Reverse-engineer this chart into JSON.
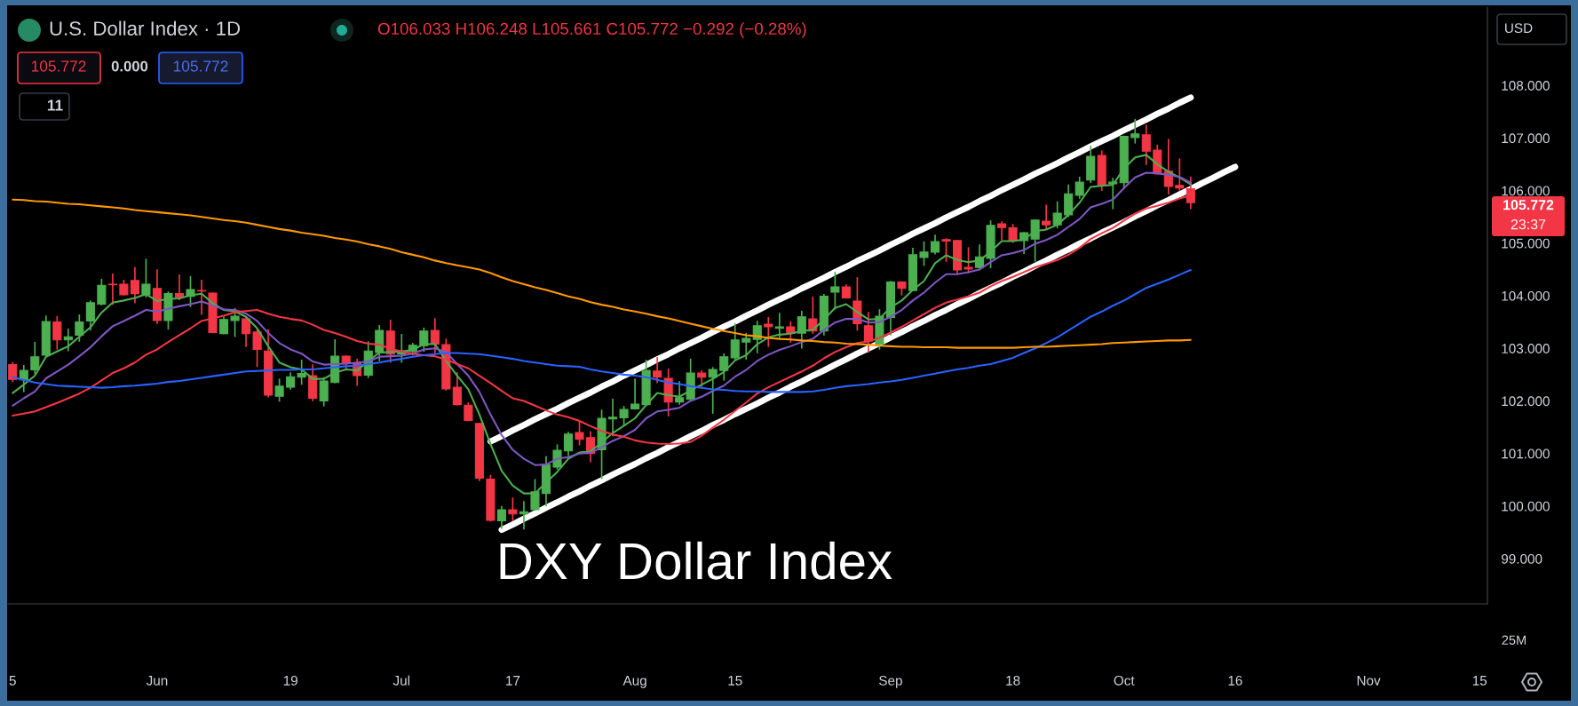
{
  "chart_data": {
    "type": "candlestick",
    "title": "U.S. Dollar Index · 1D",
    "subtitle": "O106.033 H106.248 L105.661 C105.772 −0.292 (−0.28%)",
    "categories": [
      "5",
      null,
      null,
      null,
      null,
      null,
      null,
      null,
      null,
      null,
      null,
      null,
      null,
      "Jun",
      null,
      null,
      null,
      null,
      null,
      null,
      null,
      null,
      null,
      null,
      null,
      "19",
      null,
      null,
      null,
      null,
      null,
      null,
      null,
      null,
      null,
      "Jul",
      null,
      null,
      null,
      null,
      null,
      null,
      null,
      null,
      null,
      "17",
      null,
      null,
      null,
      null,
      null,
      null,
      null,
      null,
      null,
      null,
      "Aug",
      null,
      null,
      null,
      null,
      null,
      null,
      null,
      null,
      "15",
      null,
      null,
      null,
      null,
      null,
      null,
      null,
      null,
      null,
      null,
      null,
      null,
      null,
      "Sep",
      null,
      null,
      null,
      null,
      null,
      null,
      null,
      null,
      null,
      null,
      "18",
      null,
      null,
      null,
      null,
      null,
      null,
      null,
      null,
      null,
      "Oct",
      null,
      null,
      null,
      null,
      null,
      null,
      null,
      null,
      null,
      "16",
      null,
      null,
      null,
      null,
      null,
      null,
      null,
      null,
      null,
      null,
      null,
      "Nov",
      null,
      null,
      null,
      null,
      null,
      null,
      null,
      null,
      null,
      "15"
    ],
    "ohlc": [
      [
        102.69,
        102.73,
        102.37,
        102.41
      ],
      [
        102.4,
        102.67,
        102.18,
        102.58
      ],
      [
        102.59,
        103.11,
        102.53,
        102.84
      ],
      [
        102.87,
        103.61,
        102.86,
        103.51
      ],
      [
        103.5,
        103.6,
        102.99,
        103.16
      ],
      [
        103.16,
        103.36,
        102.96,
        103.22
      ],
      [
        103.25,
        103.63,
        103.14,
        103.5
      ],
      [
        103.52,
        103.9,
        103.35,
        103.87
      ],
      [
        103.84,
        104.31,
        103.83,
        104.2
      ],
      [
        104.22,
        104.41,
        103.84,
        104.21
      ],
      [
        104.22,
        104.29,
        104.02,
        104.02
      ],
      [
        104.29,
        104.53,
        103.87,
        104.04
      ],
      [
        104.02,
        104.69,
        103.98,
        104.22
      ],
      [
        104.14,
        104.49,
        103.48,
        103.53
      ],
      [
        103.53,
        104.07,
        103.37,
        104.04
      ],
      [
        104.04,
        104.39,
        103.93,
        103.97
      ],
      [
        103.99,
        104.36,
        103.8,
        104.12
      ],
      [
        104.1,
        104.29,
        103.65,
        104.09
      ],
      [
        104.05,
        104.05,
        103.3,
        103.3
      ],
      [
        103.28,
        103.59,
        103.28,
        103.55
      ],
      [
        103.53,
        103.75,
        103.23,
        103.61
      ],
      [
        103.56,
        103.6,
        103.04,
        103.28
      ],
      [
        103.31,
        103.38,
        102.66,
        102.98
      ],
      [
        102.95,
        103.35,
        102.08,
        102.11
      ],
      [
        102.09,
        102.41,
        102.0,
        102.28
      ],
      [
        102.26,
        102.53,
        102.23,
        102.46
      ],
      [
        102.45,
        102.77,
        102.32,
        102.52
      ],
      [
        102.48,
        102.68,
        102.01,
        102.05
      ],
      [
        102.0,
        102.44,
        101.91,
        102.38
      ],
      [
        102.35,
        103.16,
        102.35,
        102.85
      ],
      [
        102.85,
        102.85,
        102.6,
        102.72
      ],
      [
        102.72,
        102.79,
        102.3,
        102.48
      ],
      [
        102.49,
        103.12,
        102.45,
        102.95
      ],
      [
        102.92,
        103.43,
        102.77,
        103.34
      ],
      [
        103.33,
        103.53,
        102.74,
        102.89
      ],
      [
        102.89,
        103.26,
        102.74,
        102.95
      ],
      [
        102.94,
        103.09,
        102.88,
        103.06
      ],
      [
        103.05,
        103.38,
        102.95,
        103.33
      ],
      [
        103.34,
        103.56,
        102.92,
        103.08
      ],
      [
        103.07,
        103.17,
        102.21,
        102.23
      ],
      [
        102.26,
        102.53,
        101.93,
        101.93
      ],
      [
        101.92,
        101.96,
        101.63,
        101.63
      ],
      [
        101.57,
        101.57,
        100.49,
        100.53
      ],
      [
        100.51,
        100.58,
        99.72,
        99.73
      ],
      [
        99.72,
        99.99,
        99.58,
        99.93
      ],
      [
        99.93,
        100.15,
        99.73,
        99.85
      ],
      [
        99.85,
        100.08,
        99.57,
        99.89
      ],
      [
        99.93,
        100.5,
        99.93,
        100.27
      ],
      [
        100.24,
        100.94,
        100.01,
        100.79
      ],
      [
        100.74,
        101.16,
        100.71,
        101.06
      ],
      [
        101.05,
        101.4,
        100.96,
        101.37
      ],
      [
        101.4,
        101.6,
        101.17,
        101.27
      ],
      [
        101.3,
        101.41,
        100.85,
        101.0
      ],
      [
        101.07,
        101.82,
        100.53,
        101.67
      ],
      [
        101.66,
        102.03,
        101.34,
        101.69
      ],
      [
        101.68,
        101.89,
        101.55,
        101.84
      ],
      [
        101.85,
        102.41,
        101.85,
        101.94
      ],
      [
        101.93,
        102.77,
        101.93,
        102.58
      ],
      [
        102.57,
        102.82,
        102.35,
        102.45
      ],
      [
        102.43,
        102.6,
        101.72,
        101.98
      ],
      [
        101.98,
        102.36,
        101.94,
        102.06
      ],
      [
        102.03,
        102.79,
        102.03,
        102.53
      ],
      [
        102.53,
        102.57,
        102.28,
        102.45
      ],
      [
        102.45,
        102.63,
        101.77,
        102.6
      ],
      [
        102.58,
        102.89,
        102.4,
        102.84
      ],
      [
        102.82,
        103.46,
        102.77,
        103.16
      ],
      [
        103.12,
        103.28,
        102.8,
        103.19
      ],
      [
        103.17,
        103.51,
        102.92,
        103.43
      ],
      [
        103.46,
        103.58,
        103.04,
        103.41
      ],
      [
        103.38,
        103.66,
        103.21,
        103.41
      ],
      [
        103.41,
        103.5,
        103.12,
        103.29
      ],
      [
        103.29,
        103.7,
        103.01,
        103.6
      ],
      [
        103.56,
        103.97,
        103.29,
        103.33
      ],
      [
        103.33,
        104.02,
        103.26,
        103.99
      ],
      [
        104.07,
        104.44,
        103.75,
        104.17
      ],
      [
        104.17,
        104.2,
        103.96,
        103.96
      ],
      [
        103.9,
        104.34,
        103.35,
        103.47
      ],
      [
        103.43,
        103.68,
        102.93,
        103.14
      ],
      [
        103.08,
        103.73,
        102.99,
        103.61
      ],
      [
        103.59,
        104.27,
        103.26,
        104.26
      ],
      [
        104.26,
        104.26,
        104.02,
        104.14
      ],
      [
        104.1,
        104.9,
        104.1,
        104.78
      ],
      [
        104.73,
        105.02,
        104.58,
        104.83
      ],
      [
        104.83,
        105.15,
        104.8,
        105.03
      ],
      [
        105.07,
        105.08,
        104.66,
        105.04
      ],
      [
        105.05,
        105.05,
        104.41,
        104.49
      ],
      [
        104.54,
        104.91,
        104.44,
        104.51
      ],
      [
        104.54,
        104.96,
        104.51,
        104.74
      ],
      [
        104.71,
        105.42,
        104.54,
        105.34
      ],
      [
        105.37,
        105.4,
        105.07,
        105.3
      ],
      [
        105.29,
        105.35,
        105.02,
        105.05
      ],
      [
        105.05,
        105.2,
        104.81,
        105.2
      ],
      [
        105.08,
        105.44,
        104.66,
        105.44
      ],
      [
        105.42,
        105.72,
        105.27,
        105.35
      ],
      [
        105.35,
        105.78,
        105.3,
        105.57
      ],
      [
        105.54,
        106.1,
        105.51,
        105.94
      ],
      [
        105.91,
        106.25,
        105.86,
        106.16
      ],
      [
        106.2,
        106.84,
        106.16,
        106.65
      ],
      [
        106.67,
        106.75,
        106.01,
        106.1
      ],
      [
        106.13,
        106.23,
        105.66,
        106.16
      ],
      [
        106.15,
        107.03,
        106.05,
        107.03
      ],
      [
        107.01,
        107.35,
        106.91,
        107.08
      ],
      [
        107.06,
        107.24,
        106.5,
        106.75
      ],
      [
        106.77,
        106.86,
        106.32,
        106.32
      ],
      [
        106.37,
        106.97,
        105.94,
        106.08
      ],
      [
        106.1,
        106.6,
        106.01,
        106.05
      ],
      [
        106.033,
        106.248,
        105.661,
        105.772
      ],
      null,
      null,
      null,
      null,
      null,
      null,
      null,
      null,
      null,
      null,
      null,
      null,
      null,
      null,
      null,
      null,
      null,
      null,
      null,
      null,
      null,
      null,
      null,
      null,
      null,
      null
    ],
    "colors": [
      "#f23645",
      "#4caf50",
      "#4caf50",
      "#4caf50",
      "#f23645",
      "#4caf50",
      "#4caf50",
      "#4caf50",
      "#4caf50",
      "#f23645",
      "#f23645",
      "#f23645",
      "#4caf50",
      "#f23645",
      "#4caf50",
      "#f23645",
      "#4caf50",
      "#f23645",
      "#f23645",
      "#4caf50",
      "#4caf50",
      "#f23645",
      "#f23645",
      "#f23645",
      "#4caf50",
      "#4caf50",
      "#4caf50",
      "#f23645",
      "#4caf50",
      "#4caf50",
      "#f23645",
      "#f23645",
      "#4caf50",
      "#4caf50",
      "#f23645",
      "#4caf50",
      "#4caf50",
      "#4caf50",
      "#f23645",
      "#f23645",
      "#f23645",
      "#f23645",
      "#f23645",
      "#f23645",
      "#4caf50",
      "#f23645",
      "#4caf50",
      "#4caf50",
      "#4caf50",
      "#4caf50",
      "#4caf50",
      "#f23645",
      "#f23645",
      "#4caf50",
      "#4caf50",
      "#4caf50",
      "#4caf50",
      "#4caf50",
      "#f23645",
      "#f23645",
      "#4caf50",
      "#4caf50",
      "#f23645",
      "#4caf50",
      "#4caf50",
      "#4caf50",
      "#4caf50",
      "#4caf50",
      "#f23645",
      "#4caf50",
      "#f23645",
      "#4caf50",
      "#f23645",
      "#4caf50",
      "#4caf50",
      "#f23645",
      "#f23645",
      "#f23645",
      "#4caf50",
      "#4caf50",
      "#f23645",
      "#4caf50",
      "#4caf50",
      "#4caf50",
      "#f23645",
      "#f23645",
      "#f23645",
      "#4caf50",
      "#4caf50",
      "#f23645",
      "#f23645",
      "#4caf50",
      "#4caf50",
      "#f23645",
      "#4caf50",
      "#4caf50",
      "#4caf50",
      "#4caf50",
      "#f23645",
      "#4caf50",
      "#4caf50",
      "#4caf50",
      "#f23645",
      "#f23645",
      "#f23645",
      "#f23645",
      "#f23645",
      null,
      null,
      null,
      null,
      null,
      null,
      null,
      null,
      null,
      null,
      null,
      null,
      null,
      null,
      null,
      null,
      null,
      null,
      null,
      null,
      null,
      null,
      null,
      null,
      null,
      null
    ],
    "series": [
      {
        "type": "line",
        "color": "#4caf50",
        "values": [
          102.15,
          102.31,
          102.48,
          102.84,
          102.94,
          103.04,
          103.22,
          103.4,
          103.68,
          103.87,
          103.91,
          103.96,
          104.03,
          103.9,
          103.94,
          103.95,
          104.01,
          104.04,
          103.86,
          103.73,
          103.7,
          103.6,
          103.38,
          103.04,
          102.73,
          102.64,
          102.6,
          102.42,
          102.42,
          102.54,
          102.6,
          102.58,
          102.76,
          102.92,
          102.93,
          102.94,
          102.97,
          103.08,
          103.08,
          102.76,
          102.48,
          102.22,
          101.74,
          101.18,
          100.67,
          100.39,
          100.24,
          100.24,
          100.45,
          100.65,
          100.9,
          101.02,
          101.04,
          101.21,
          101.39,
          101.53,
          101.67,
          101.92,
          102.15,
          102.11,
          102.08,
          102.2,
          102.31,
          102.42,
          102.55,
          102.77,
          102.87,
          103.08,
          103.21,
          103.26,
          103.28,
          103.33,
          103.35,
          103.55,
          103.77,
          103.84,
          103.69,
          103.55,
          103.56,
          103.78,
          103.91,
          104.11,
          104.28,
          104.62,
          104.77,
          104.68,
          104.64,
          104.67,
          104.84,
          105.04,
          105.04,
          105.07,
          105.23,
          105.26,
          105.35,
          105.54,
          105.77,
          106.07,
          106.09,
          106.11,
          106.42,
          106.63,
          106.68,
          106.5,
          106.36,
          106.25,
          106.12,
          null,
          null,
          null,
          null,
          null,
          null,
          null,
          null,
          null,
          null,
          null,
          null,
          null,
          null,
          null,
          null,
          null,
          null,
          null,
          null,
          null,
          null,
          null,
          null,
          null,
          null
        ]
      },
      {
        "type": "line",
        "color": "#7e57c2",
        "values": [
          101.91,
          102.05,
          102.18,
          102.43,
          102.56,
          102.69,
          102.85,
          103.02,
          103.23,
          103.42,
          103.52,
          103.62,
          103.73,
          103.7,
          103.75,
          103.8,
          103.84,
          103.89,
          103.82,
          103.74,
          103.73,
          103.66,
          103.52,
          103.29,
          103.1,
          102.98,
          102.9,
          102.75,
          102.69,
          102.7,
          102.71,
          102.73,
          102.75,
          102.84,
          102.85,
          102.86,
          102.9,
          102.98,
          103.0,
          102.93,
          102.7,
          102.48,
          102.17,
          101.74,
          101.35,
          101.07,
          100.9,
          100.78,
          100.79,
          100.9,
          100.93,
          101.0,
          101.01,
          101.12,
          101.24,
          101.33,
          101.45,
          101.67,
          101.8,
          101.83,
          101.87,
          102.0,
          102.08,
          102.19,
          102.29,
          102.46,
          102.59,
          102.76,
          102.88,
          102.97,
          103.04,
          103.12,
          103.18,
          103.35,
          103.49,
          103.56,
          103.56,
          103.49,
          103.5,
          103.6,
          103.73,
          103.91,
          104.06,
          104.25,
          104.41,
          104.41,
          104.45,
          104.5,
          104.64,
          104.77,
          104.81,
          104.87,
          104.99,
          105.06,
          105.16,
          105.31,
          105.46,
          105.68,
          105.75,
          105.83,
          106.05,
          106.25,
          106.34,
          106.33,
          106.3,
          106.26,
          106.15,
          null,
          null,
          null,
          null,
          null,
          null,
          null,
          null,
          null,
          null,
          null,
          null,
          null,
          null,
          null,
          null,
          null,
          null,
          null,
          null,
          null,
          null,
          null,
          null,
          null,
          null
        ]
      },
      {
        "type": "line",
        "color": "#f23645",
        "values": [
          101.72,
          101.76,
          101.8,
          101.88,
          101.96,
          102.05,
          102.14,
          102.25,
          102.39,
          102.53,
          102.62,
          102.73,
          102.88,
          102.98,
          103.12,
          103.25,
          103.38,
          103.52,
          103.57,
          103.62,
          103.69,
          103.71,
          103.73,
          103.66,
          103.6,
          103.56,
          103.53,
          103.45,
          103.35,
          103.29,
          103.22,
          103.14,
          103.09,
          103.07,
          102.99,
          102.94,
          102.9,
          102.87,
          102.85,
          102.79,
          102.7,
          102.62,
          102.48,
          102.34,
          102.19,
          102.05,
          102.0,
          101.91,
          101.82,
          101.74,
          101.69,
          101.62,
          101.52,
          101.43,
          101.36,
          101.32,
          101.25,
          101.21,
          101.19,
          101.18,
          101.19,
          101.22,
          101.34,
          101.49,
          101.64,
          101.81,
          101.97,
          102.14,
          102.26,
          102.36,
          102.46,
          102.56,
          102.67,
          102.81,
          102.93,
          103.02,
          103.1,
          103.13,
          103.2,
          103.3,
          103.41,
          103.53,
          103.65,
          103.77,
          103.87,
          103.93,
          103.99,
          104.06,
          104.18,
          104.28,
          104.36,
          104.45,
          104.54,
          104.61,
          104.68,
          104.78,
          104.91,
          105.08,
          105.19,
          105.29,
          105.43,
          105.56,
          105.66,
          105.71,
          105.77,
          105.85,
          105.91,
          null,
          null,
          null,
          null,
          null,
          null,
          null,
          null,
          null,
          null,
          null,
          null,
          null,
          null,
          null,
          null,
          null,
          null,
          null,
          null,
          null,
          null,
          null,
          null,
          null,
          null
        ]
      },
      {
        "type": "line",
        "color": "#2962ff",
        "values": [
          102.45,
          102.4,
          102.35,
          102.32,
          102.29,
          102.28,
          102.27,
          102.26,
          102.25,
          102.26,
          102.28,
          102.29,
          102.31,
          102.33,
          102.36,
          102.38,
          102.41,
          102.44,
          102.47,
          102.5,
          102.53,
          102.56,
          102.57,
          102.58,
          102.59,
          102.59,
          102.6,
          102.6,
          102.62,
          102.64,
          102.66,
          102.67,
          102.7,
          102.73,
          102.77,
          102.8,
          102.84,
          102.87,
          102.89,
          102.91,
          102.91,
          102.9,
          102.89,
          102.86,
          102.83,
          102.8,
          102.76,
          102.73,
          102.7,
          102.67,
          102.66,
          102.65,
          102.6,
          102.56,
          102.53,
          102.5,
          102.48,
          102.45,
          102.4,
          102.35,
          102.32,
          102.28,
          102.25,
          102.22,
          102.21,
          102.19,
          102.18,
          102.18,
          102.17,
          102.17,
          102.17,
          102.17,
          102.18,
          102.21,
          102.25,
          102.28,
          102.3,
          102.32,
          102.35,
          102.37,
          102.4,
          102.44,
          102.48,
          102.52,
          102.56,
          102.6,
          102.63,
          102.67,
          102.7,
          102.76,
          102.82,
          102.91,
          103.0,
          103.1,
          103.21,
          103.34,
          103.47,
          103.6,
          103.7,
          103.81,
          103.91,
          104.03,
          104.15,
          104.23,
          104.31,
          104.4,
          104.49,
          null,
          null,
          null,
          null,
          null,
          null,
          null,
          null,
          null,
          null,
          null,
          null,
          null,
          null,
          null,
          null,
          null,
          null,
          null,
          null,
          null,
          null,
          null,
          null,
          null,
          null
        ]
      },
      {
        "type": "line",
        "color": "#ff9800",
        "values": [
          105.83,
          105.82,
          105.8,
          105.79,
          105.77,
          105.75,
          105.74,
          105.72,
          105.7,
          105.68,
          105.66,
          105.63,
          105.61,
          105.59,
          105.57,
          105.55,
          105.53,
          105.5,
          105.47,
          105.44,
          105.42,
          105.39,
          105.35,
          105.31,
          105.27,
          105.24,
          105.2,
          105.17,
          105.14,
          105.1,
          105.07,
          105.03,
          104.98,
          104.94,
          104.89,
          104.83,
          104.78,
          104.73,
          104.67,
          104.62,
          104.58,
          104.54,
          104.5,
          104.43,
          104.35,
          104.28,
          104.22,
          104.16,
          104.11,
          104.05,
          103.99,
          103.94,
          103.88,
          103.83,
          103.79,
          103.74,
          103.7,
          103.66,
          103.61,
          103.57,
          103.52,
          103.47,
          103.42,
          103.37,
          103.33,
          103.29,
          103.25,
          103.23,
          103.2,
          103.18,
          103.17,
          103.15,
          103.14,
          103.12,
          103.11,
          103.09,
          103.08,
          103.07,
          103.05,
          103.04,
          103.03,
          103.03,
          103.02,
          103.02,
          103.02,
          103.01,
          103.01,
          103.01,
          103.01,
          103.01,
          103.01,
          103.02,
          103.03,
          103.03,
          103.04,
          103.05,
          103.06,
          103.07,
          103.08,
          103.1,
          103.11,
          103.12,
          103.13,
          103.14,
          103.15,
          103.15,
          103.16,
          null,
          null,
          null,
          null,
          null,
          null,
          null,
          null,
          null,
          null,
          null,
          null,
          null,
          null,
          null,
          null,
          null,
          null,
          null,
          null,
          null,
          null,
          null,
          null,
          null,
          null
        ]
      },
      {
        "type": "line",
        "color": "#ffffff",
        "values": [
          null,
          null,
          null,
          null,
          null,
          null,
          null,
          null,
          null,
          null,
          null,
          null,
          null,
          null,
          null,
          null,
          null,
          null,
          null,
          null,
          null,
          null,
          null,
          null,
          null,
          null,
          null,
          null,
          null,
          null,
          null,
          null,
          null,
          null,
          null,
          null,
          null,
          null,
          null,
          null,
          null,
          null,
          null,
          101.23,
          101.33,
          101.44,
          101.54,
          101.65,
          101.75,
          101.85,
          101.96,
          102.06,
          102.16,
          102.27,
          102.37,
          102.48,
          102.58,
          102.68,
          102.79,
          102.89,
          103.0,
          103.1,
          103.2,
          103.31,
          103.41,
          103.51,
          103.62,
          103.72,
          103.83,
          103.93,
          104.03,
          104.14,
          104.24,
          104.34,
          104.45,
          104.55,
          104.66,
          104.76,
          104.86,
          104.97,
          105.07,
          105.18,
          105.28,
          105.38,
          105.49,
          105.59,
          105.69,
          105.8,
          105.9,
          106.01,
          106.11,
          106.21,
          106.32,
          106.42,
          106.52,
          106.63,
          106.73,
          106.84,
          106.94,
          107.04,
          107.15,
          107.25,
          107.35,
          107.46,
          107.56,
          107.67,
          107.77,
          null,
          null,
          null,
          null,
          null,
          null,
          null,
          null,
          null,
          null,
          null,
          null,
          null,
          null,
          null,
          null,
          null,
          null,
          null,
          null,
          null,
          null,
          null,
          null,
          null,
          null
        ]
      },
      {
        "type": "line",
        "color": "#ffffff",
        "values": [
          null,
          null,
          null,
          null,
          null,
          null,
          null,
          null,
          null,
          null,
          null,
          null,
          null,
          null,
          null,
          null,
          null,
          null,
          null,
          null,
          null,
          null,
          null,
          null,
          null,
          null,
          null,
          null,
          null,
          null,
          null,
          null,
          null,
          null,
          null,
          null,
          null,
          null,
          null,
          null,
          null,
          null,
          null,
          null,
          99.55,
          99.65,
          99.76,
          99.86,
          99.97,
          100.07,
          100.18,
          100.28,
          100.39,
          100.49,
          100.6,
          100.7,
          100.8,
          100.91,
          101.01,
          101.12,
          101.22,
          101.33,
          101.43,
          101.54,
          101.64,
          101.75,
          101.85,
          101.95,
          102.06,
          102.16,
          102.27,
          102.37,
          102.48,
          102.58,
          102.69,
          102.79,
          102.9,
          103.0,
          103.1,
          103.21,
          103.31,
          103.42,
          103.52,
          103.63,
          103.73,
          103.84,
          103.94,
          104.05,
          104.15,
          104.25,
          104.36,
          104.46,
          104.57,
          104.67,
          104.78,
          104.88,
          104.99,
          105.09,
          105.2,
          105.3,
          105.4,
          105.51,
          105.61,
          105.72,
          105.82,
          105.93,
          106.03,
          106.14,
          106.24,
          106.35,
          106.45,
          null,
          null,
          null,
          null,
          null,
          null,
          null,
          null,
          null,
          null,
          null,
          null,
          null,
          null,
          null,
          null,
          null,
          null,
          null,
          null,
          null,
          null
        ]
      }
    ],
    "ylim": [
      98.14,
      109.49
    ],
    "yticks": [
      {
        "value": 99,
        "label": "99.000"
      },
      {
        "value": 100,
        "label": "100.000"
      },
      {
        "value": 101,
        "label": "101.000"
      },
      {
        "value": 102,
        "label": "102.000"
      },
      {
        "value": 103,
        "label": "103.000"
      },
      {
        "value": 104,
        "label": "104.000"
      },
      {
        "value": 105,
        "label": "105.000"
      },
      {
        "value": 106,
        "label": "106.000"
      },
      {
        "value": 107,
        "label": "107.000"
      },
      {
        "value": 108,
        "label": "108.000"
      }
    ],
    "annotations": [
      "105.772",
      "0.000",
      "105.772",
      "11",
      "USD",
      "23:37",
      "DXY Dollar Index",
      "25M",
      "105.772"
    ]
  }
}
